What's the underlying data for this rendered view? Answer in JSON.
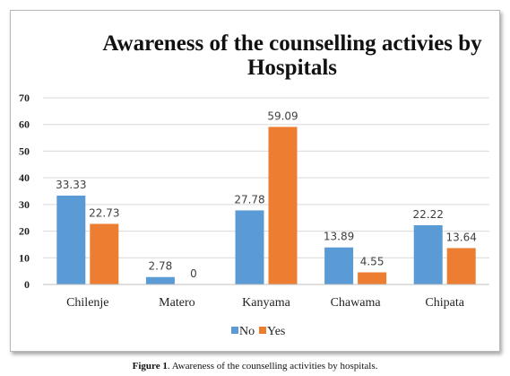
{
  "chart_data": {
    "type": "bar",
    "title_line1": "Awareness  of the counselling activies by",
    "title_line2": "Hospitals",
    "categories": [
      "Chilenje",
      "Matero",
      "Kanyama",
      "Chawama",
      "Chipata"
    ],
    "series": [
      {
        "name": "No",
        "values": [
          33.33,
          2.78,
          27.78,
          13.89,
          22.22
        ],
        "labels": [
          "33.33",
          "2.78",
          "27.78",
          "13.89",
          "22.22"
        ]
      },
      {
        "name": "Yes",
        "values": [
          22.73,
          0,
          59.09,
          4.55,
          13.64
        ],
        "labels": [
          "22.73",
          "0",
          "59.09",
          "4.55",
          "13.64"
        ]
      }
    ],
    "yticks": [
      0,
      10,
      20,
      30,
      40,
      50,
      60,
      70
    ],
    "ylim": [
      0,
      70
    ],
    "grid": true,
    "legend": "bottom",
    "colors": {
      "No": "#5b9bd5",
      "Yes": "#ed7d31"
    }
  },
  "caption": {
    "prefix": "Figure 1",
    "text": ". Awareness of the counselling activities by hospitals."
  }
}
